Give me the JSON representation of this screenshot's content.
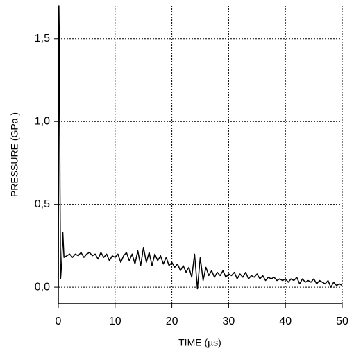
{
  "chart_data": {
    "type": "line",
    "xlabel": "TIME (µs)",
    "ylabel": "PRESSURE (GPa )",
    "xlim": [
      0,
      50
    ],
    "ylim": [
      -0.1,
      1.7
    ],
    "xticks": [
      0,
      10,
      20,
      30,
      40,
      50
    ],
    "yticks": [
      {
        "value": 0,
        "label": "0,0"
      },
      {
        "value": 0.5,
        "label": "0,5"
      },
      {
        "value": 1.0,
        "label": "1,0"
      },
      {
        "value": 1.5,
        "label": "1,5"
      }
    ],
    "grid": true,
    "series": [
      {
        "color": "#000000",
        "x": [
          0,
          0.1,
          0.2,
          0.3,
          0.4,
          0.6,
          0.8,
          1.0,
          1.5,
          2,
          2.5,
          3,
          3.5,
          4,
          4.5,
          5,
          5.5,
          6,
          6.5,
          7,
          7.5,
          8,
          8.5,
          9,
          9.5,
          10,
          10.5,
          11,
          11.5,
          12,
          12.5,
          13,
          13.5,
          14,
          14.5,
          15,
          15.5,
          16,
          16.5,
          17,
          17.5,
          18,
          18.5,
          19,
          19.5,
          20,
          20.5,
          21,
          21.5,
          22,
          22.5,
          23,
          23.5,
          24,
          24.5,
          25,
          25.5,
          26,
          26.5,
          27,
          27.5,
          28,
          28.5,
          29,
          29.5,
          30,
          30.5,
          31,
          31.5,
          32,
          32.5,
          33,
          33.5,
          34,
          34.5,
          35,
          35.5,
          36,
          36.5,
          37,
          37.5,
          38,
          38.5,
          39,
          39.5,
          40,
          40.5,
          41,
          41.5,
          42,
          42.5,
          43,
          43.5,
          44,
          44.5,
          45,
          45.5,
          46,
          46.5,
          47,
          47.5,
          48,
          48.5,
          49,
          49.5,
          50
        ],
        "values": [
          0,
          1.7,
          1.45,
          0.6,
          0.05,
          0.15,
          0.33,
          0.18,
          0.19,
          0.2,
          0.18,
          0.2,
          0.19,
          0.21,
          0.18,
          0.2,
          0.21,
          0.19,
          0.2,
          0.17,
          0.21,
          0.18,
          0.2,
          0.16,
          0.19,
          0.18,
          0.2,
          0.15,
          0.19,
          0.21,
          0.16,
          0.2,
          0.14,
          0.22,
          0.13,
          0.24,
          0.15,
          0.21,
          0.13,
          0.2,
          0.16,
          0.19,
          0.14,
          0.18,
          0.13,
          0.15,
          0.12,
          0.14,
          0.1,
          0.13,
          0.09,
          0.12,
          0.06,
          0.2,
          -0.01,
          0.18,
          0.04,
          0.12,
          0.07,
          0.1,
          0.06,
          0.09,
          0.07,
          0.1,
          0.06,
          0.08,
          0.07,
          0.09,
          0.05,
          0.08,
          0.06,
          0.09,
          0.05,
          0.07,
          0.06,
          0.08,
          0.05,
          0.07,
          0.04,
          0.06,
          0.05,
          0.06,
          0.04,
          0.05,
          0.04,
          0.05,
          0.03,
          0.05,
          0.04,
          0.06,
          0.02,
          0.05,
          0.03,
          0.04,
          0.03,
          0.05,
          0.02,
          0.04,
          0.03,
          0.02,
          0.04,
          0.0,
          0.03,
          0.01,
          0.02,
          0.01
        ]
      }
    ]
  }
}
